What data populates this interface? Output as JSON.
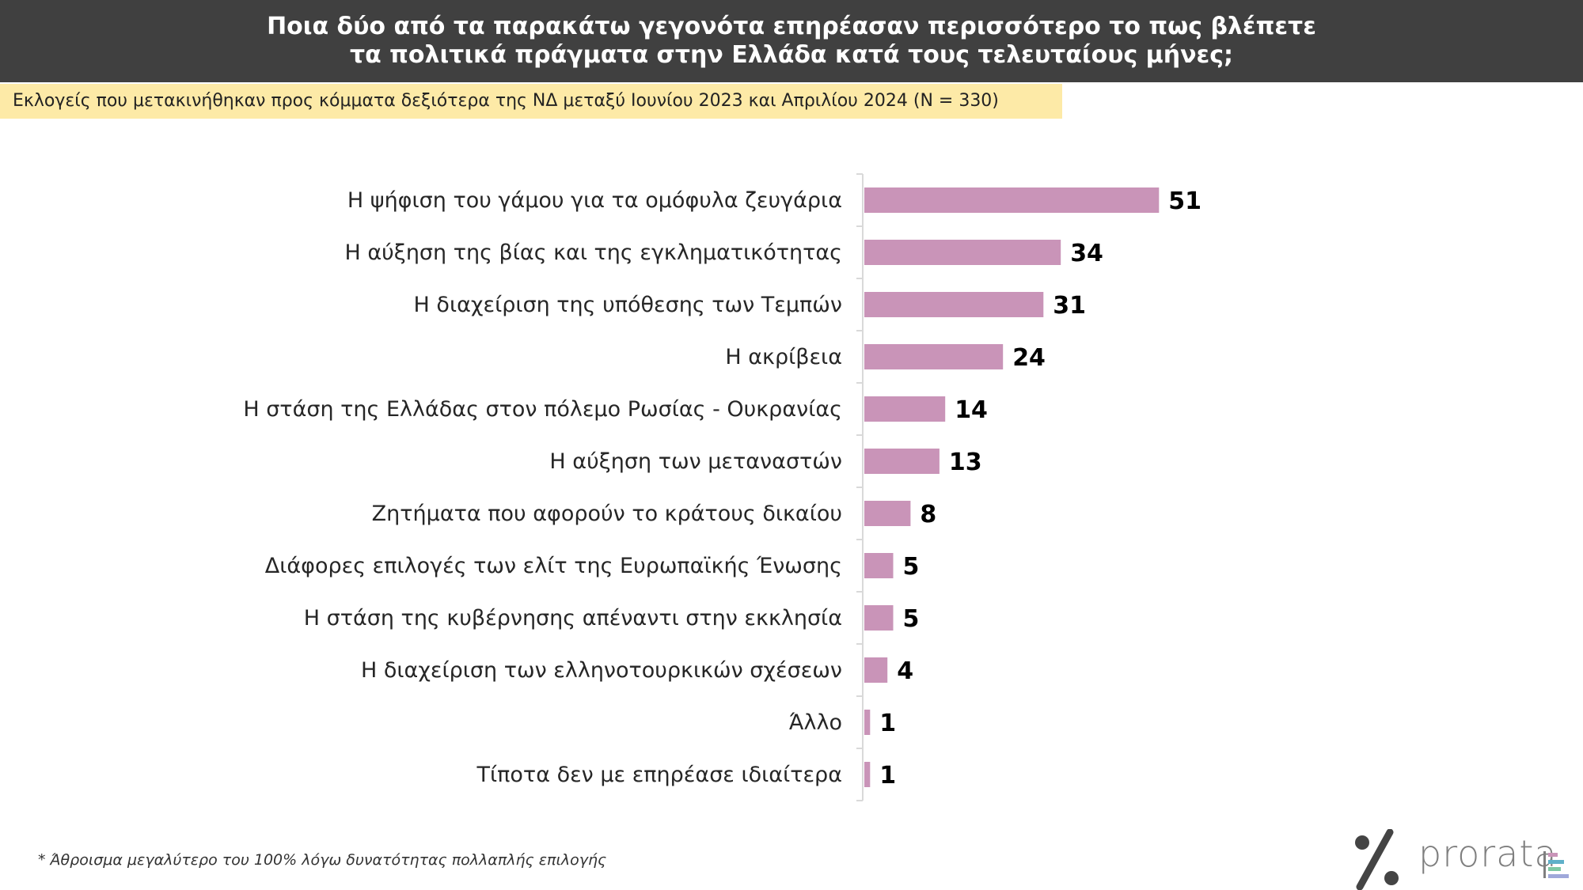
{
  "header": {
    "title_line1": "Ποια δύο από τα παρακάτω γεγονότα επηρέασαν περισσότερο το πως βλέπετε",
    "title_line2": "τα πολιτικά πράγματα στην Ελλάδα κατά τους τελευταίους μήνες;"
  },
  "subtitle": "Εκλογείς που μετακινήθηκαν προς κόμματα δεξιότερα της ΝΔ μεταξύ Ιουνίου 2023 και Απριλίου 2024 (N = 330)",
  "footnote": "* Άθροισμα μεγαλύτερο του 100% λόγω δυνατότητας πολλαπλής επιλογής",
  "logo": {
    "text": "prorata",
    "mark_icon": "percent-logo-icon"
  },
  "colors": {
    "bar": "#c994b8",
    "header_bg": "#404040",
    "subtitle_bg": "#fdeaa7"
  },
  "chart_data": {
    "type": "bar",
    "orientation": "horizontal",
    "categories": [
      "Η ψήφιση του γάμου για τα ομόφυλα ζευγάρια",
      "Η αύξηση της βίας και της εγκληματικότητας",
      "Η διαχείριση της υπόθεσης των Τεμπών",
      "Η ακρίβεια",
      "Η στάση της Ελλάδας στον πόλεμο Ρωσίας - Ουκρανίας",
      "Η αύξηση των μεταναστών",
      "Ζητήματα που αφορούν το κράτους δικαίου",
      "Διάφορες επιλογές των ελίτ της Ευρωπαϊκής Ένωσης",
      "Η στάση της κυβέρνησης απέναντι στην εκκλησία",
      "Η διαχείριση των ελληνοτουρκικών σχέσεων",
      "Άλλο",
      "Τίποτα δεν με επηρέασε ιδιαίτερα"
    ],
    "values": [
      51,
      34,
      31,
      24,
      14,
      13,
      8,
      5,
      5,
      4,
      1,
      1
    ],
    "data_labels": true,
    "grid": false
  }
}
